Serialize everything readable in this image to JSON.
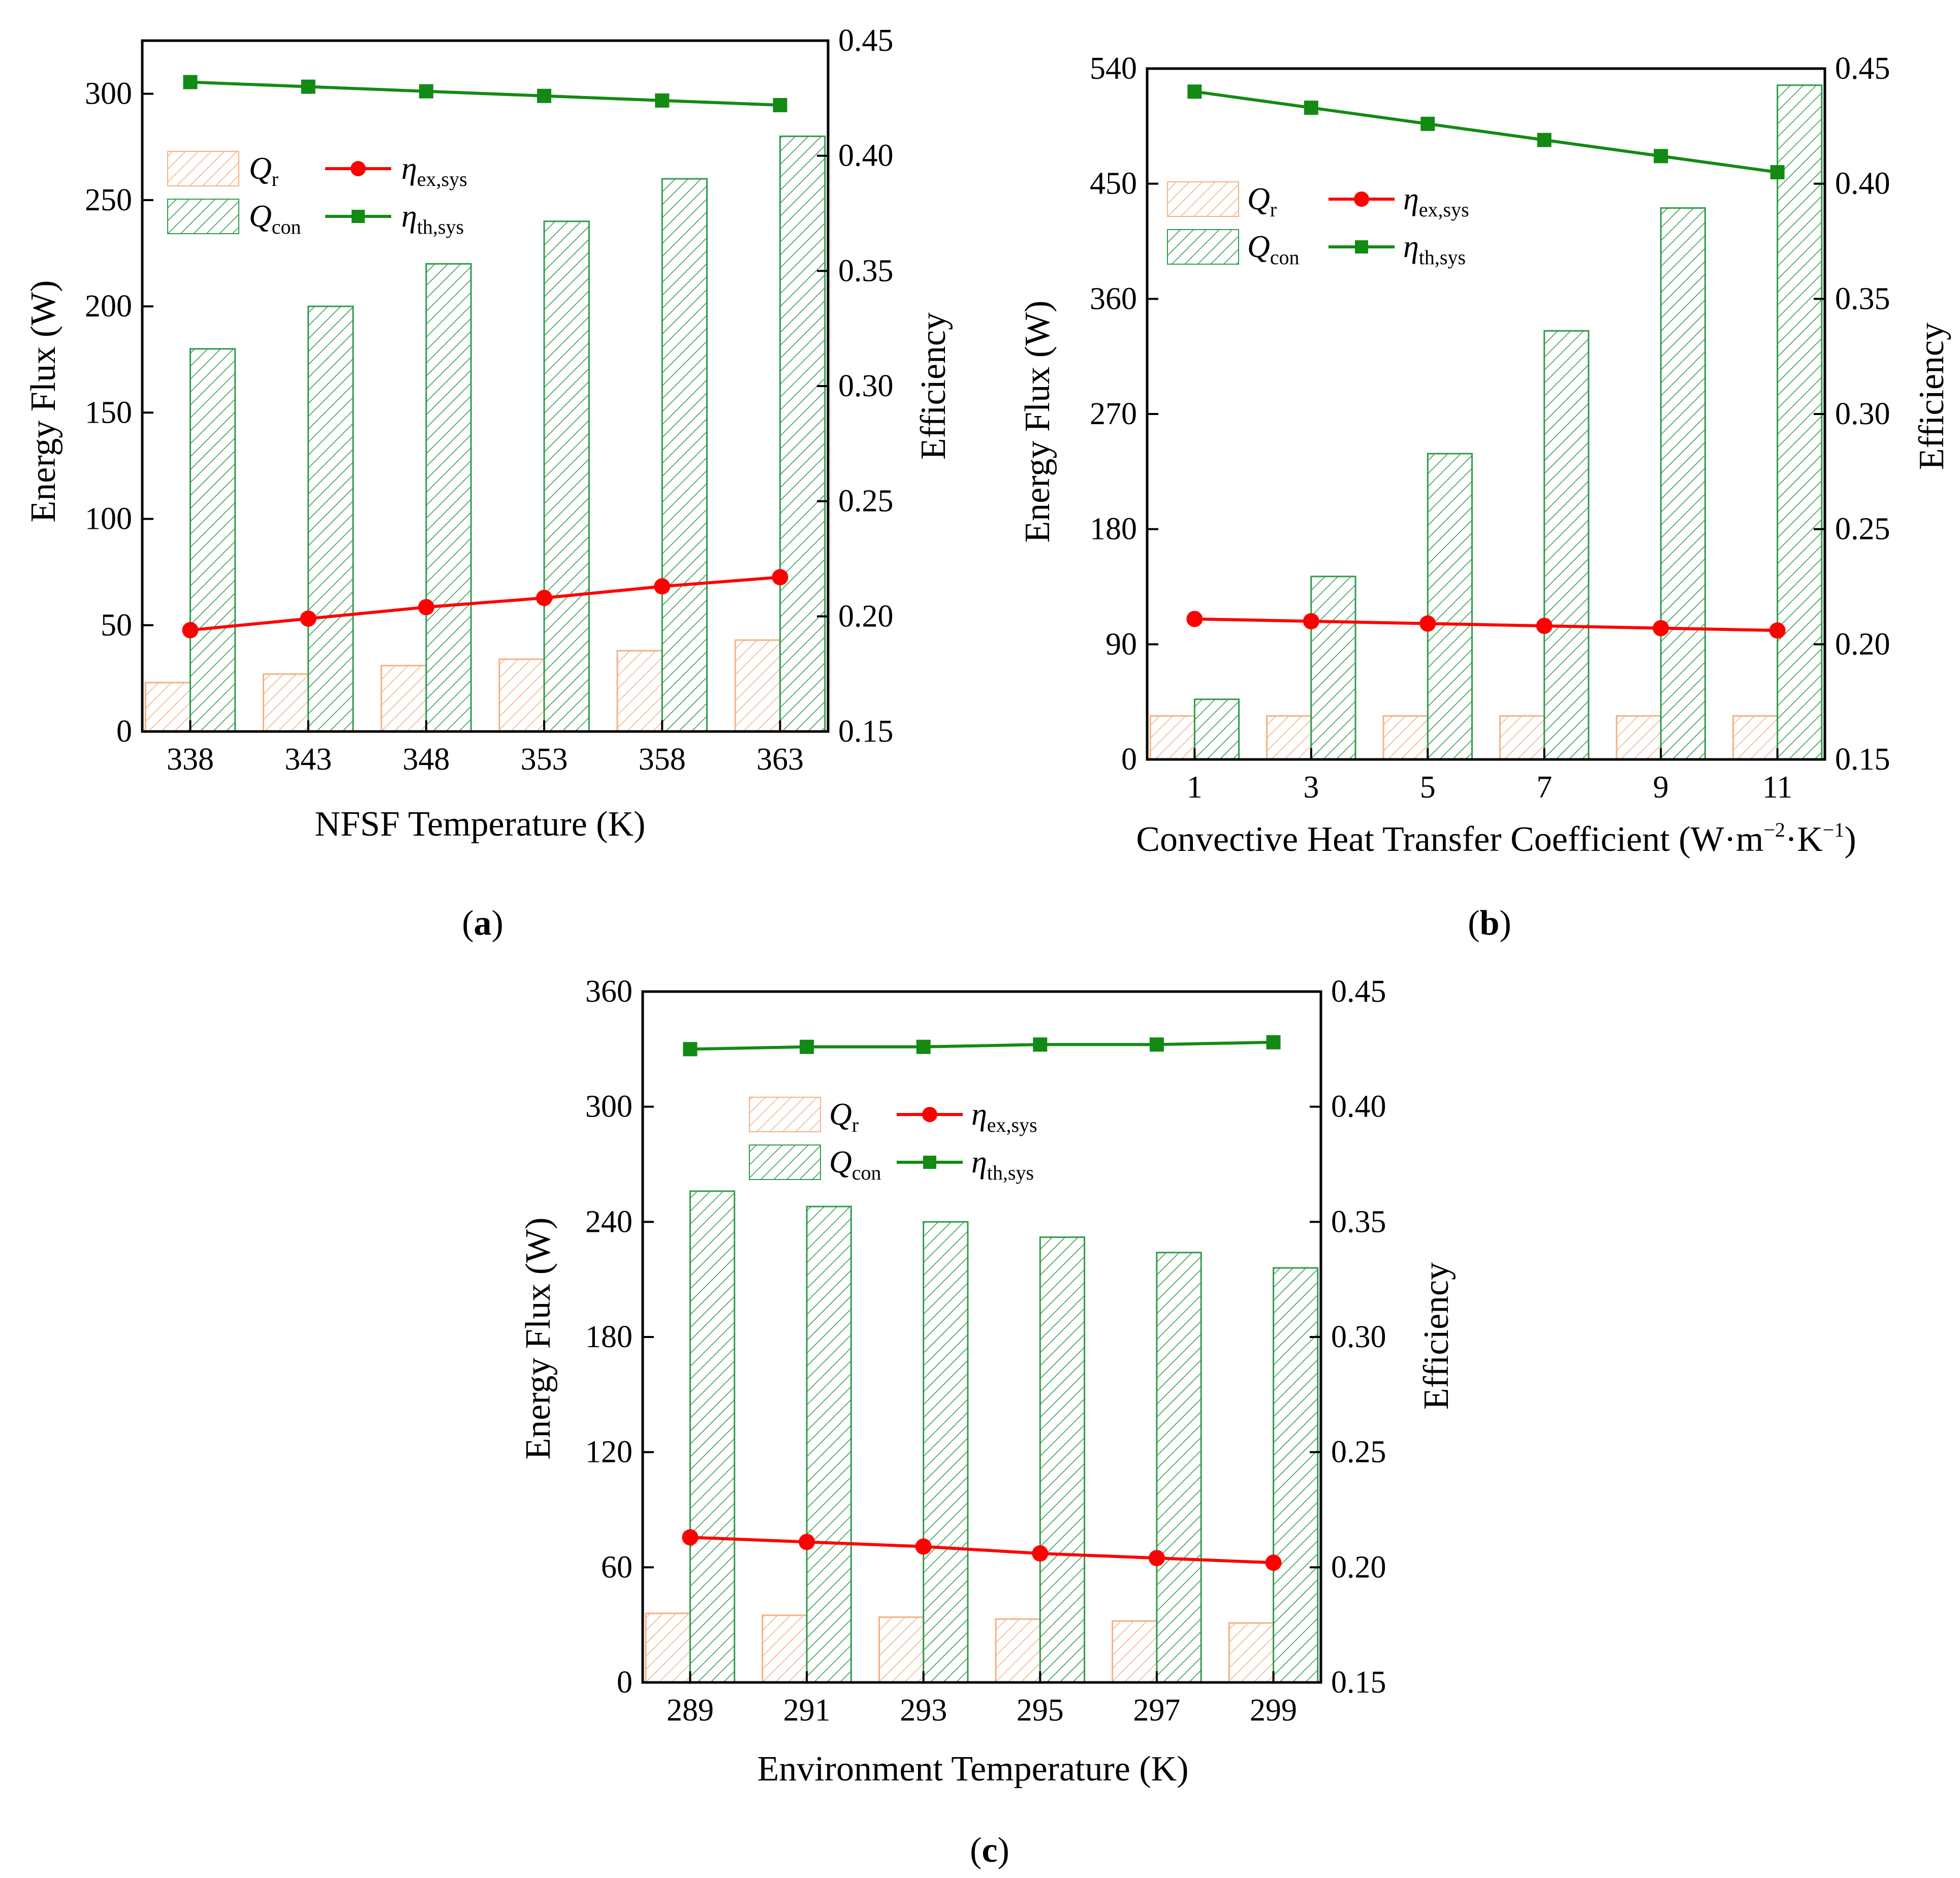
{
  "colors": {
    "qr": "#f4b183",
    "qcon": "#2e9b4b",
    "eta_ex": "#ff0000",
    "eta_th": "#138a13",
    "axis": "#000000"
  },
  "chart_data": [
    {
      "id": "a",
      "type": "bar",
      "caption_letter": "a",
      "xlabel": "NFSF Temperature (K)",
      "ylabel": "Energy Flux (W)",
      "y2label": "Efficiency",
      "categories": [
        "338",
        "343",
        "348",
        "353",
        "358",
        "363"
      ],
      "ylim": [
        0,
        325
      ],
      "yticks": [
        0,
        50,
        100,
        150,
        200,
        250,
        300
      ],
      "ytick_labels": [
        "0",
        "50",
        "100",
        "150",
        "200",
        "250",
        "300"
      ],
      "y2lim": [
        0.15,
        0.45
      ],
      "y2ticks": [
        0.15,
        0.2,
        0.25,
        0.3,
        0.35,
        0.4,
        0.45
      ],
      "y2tick_labels": [
        "0.15",
        "0.20",
        "0.25",
        "0.30",
        "0.35",
        "0.40",
        "0.45"
      ],
      "bar_series": [
        {
          "name": "Qr",
          "values": [
            23,
            27,
            31,
            34,
            38,
            43
          ]
        },
        {
          "name": "Qcon",
          "values": [
            180,
            200,
            220,
            240,
            260,
            280
          ]
        }
      ],
      "line_series": [
        {
          "name": "eta_ex_sys",
          "marker": "circle",
          "values": [
            0.194,
            0.199,
            0.204,
            0.208,
            0.213,
            0.217
          ]
        },
        {
          "name": "eta_th_sys",
          "marker": "square",
          "values": [
            0.432,
            0.43,
            0.428,
            0.426,
            0.424,
            0.422
          ]
        }
      ],
      "legend": {
        "qr": {
          "base": "Q",
          "sub": "r"
        },
        "qcon": {
          "base": "Q",
          "sub": "con"
        },
        "eta_ex": {
          "base": "η",
          "sub": "ex,sys"
        },
        "eta_th": {
          "base": "η",
          "sub": "th,sys"
        }
      }
    },
    {
      "id": "b",
      "type": "bar",
      "caption_letter": "b",
      "xlabel": "Convective Heat Transfer Coefficient (W·m",
      "xlabel_sup1": "−2",
      "xlabel_mid": "·K",
      "xlabel_sup2": "−1",
      "xlabel_end": ")",
      "ylabel": "Energy Flux (W)",
      "y2label": "Efficiency",
      "categories": [
        "1",
        "3",
        "5",
        "7",
        "9",
        "11"
      ],
      "ylim": [
        0,
        540
      ],
      "yticks": [
        0,
        90,
        180,
        270,
        360,
        450,
        540
      ],
      "ytick_labels": [
        "0",
        "90",
        "180",
        "270",
        "360",
        "450",
        "540"
      ],
      "y2lim": [
        0.15,
        0.45
      ],
      "y2ticks": [
        0.15,
        0.2,
        0.25,
        0.3,
        0.35,
        0.4,
        0.45
      ],
      "y2tick_labels": [
        "0.15",
        "0.20",
        "0.25",
        "0.30",
        "0.35",
        "0.40",
        "0.45"
      ],
      "bar_series": [
        {
          "name": "Qr",
          "values": [
            34,
            34,
            34,
            34,
            34,
            34
          ]
        },
        {
          "name": "Qcon",
          "values": [
            47,
            143,
            239,
            335,
            431,
            527
          ]
        }
      ],
      "line_series": [
        {
          "name": "eta_ex_sys",
          "marker": "circle",
          "values": [
            0.211,
            0.21,
            0.209,
            0.208,
            0.207,
            0.206
          ]
        },
        {
          "name": "eta_th_sys",
          "marker": "square",
          "values": [
            0.44,
            0.433,
            0.426,
            0.419,
            0.412,
            0.405
          ]
        }
      ],
      "legend": {
        "qr": {
          "base": "Q",
          "sub": "r"
        },
        "qcon": {
          "base": "Q",
          "sub": "con"
        },
        "eta_ex": {
          "base": "η",
          "sub": "ex,sys"
        },
        "eta_th": {
          "base": "η",
          "sub": "th,sys"
        }
      }
    },
    {
      "id": "c",
      "type": "bar",
      "caption_letter": "c",
      "xlabel": "Environment Temperature (K)",
      "ylabel": "Energy Flux (W)",
      "y2label": "Efficiency",
      "categories": [
        "289",
        "291",
        "293",
        "295",
        "297",
        "299"
      ],
      "ylim": [
        0,
        360
      ],
      "yticks": [
        0,
        60,
        120,
        180,
        240,
        300,
        360
      ],
      "ytick_labels": [
        "0",
        "60",
        "120",
        "180",
        "240",
        "300",
        "360"
      ],
      "y2lim": [
        0.15,
        0.45
      ],
      "y2ticks": [
        0.15,
        0.2,
        0.25,
        0.3,
        0.35,
        0.4,
        0.45
      ],
      "y2tick_labels": [
        "0.15",
        "0.20",
        "0.25",
        "0.30",
        "0.35",
        "0.40",
        "0.45"
      ],
      "bar_series": [
        {
          "name": "Qr",
          "values": [
            36,
            35,
            34,
            33,
            32,
            31
          ]
        },
        {
          "name": "Qcon",
          "values": [
            256,
            248,
            240,
            232,
            224,
            216
          ]
        }
      ],
      "line_series": [
        {
          "name": "eta_ex_sys",
          "marker": "circle",
          "values": [
            0.213,
            0.211,
            0.209,
            0.206,
            0.204,
            0.202
          ]
        },
        {
          "name": "eta_th_sys",
          "marker": "square",
          "values": [
            0.425,
            0.426,
            0.426,
            0.427,
            0.427,
            0.428
          ]
        }
      ],
      "legend": {
        "qr": {
          "base": "Q",
          "sub": "r"
        },
        "qcon": {
          "base": "Q",
          "sub": "con"
        },
        "eta_ex": {
          "base": "η",
          "sub": "ex,sys"
        },
        "eta_th": {
          "base": "η",
          "sub": "th,sys"
        }
      }
    }
  ]
}
